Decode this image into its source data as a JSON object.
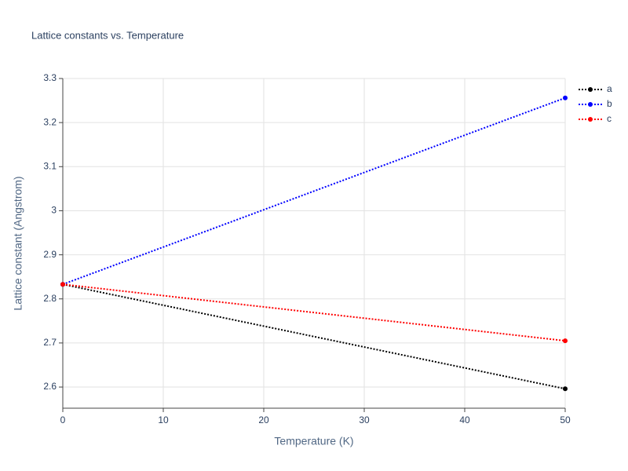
{
  "chart_data": {
    "type": "line",
    "title": "Lattice constants vs. Temperature",
    "x_label": "Temperature (K)",
    "y_label": "Lattice constant (Angstrom)",
    "x": [
      0,
      50
    ],
    "series": [
      {
        "name": "a",
        "color": "#000000",
        "values": [
          2.833,
          2.596
        ]
      },
      {
        "name": "b",
        "color": "#0000ff",
        "values": [
          2.833,
          3.256
        ]
      },
      {
        "name": "c",
        "color": "#ff0000",
        "values": [
          2.833,
          2.705
        ]
      }
    ],
    "xlim": [
      0,
      50
    ],
    "xticks": [
      0,
      10,
      20,
      30,
      40,
      50
    ],
    "ylim": [
      2.552,
      3.3
    ],
    "yticks": [
      2.6,
      2.7,
      2.8,
      2.9,
      3,
      3.1,
      3.2,
      3.3
    ],
    "grid": true,
    "legend": "top-right"
  }
}
